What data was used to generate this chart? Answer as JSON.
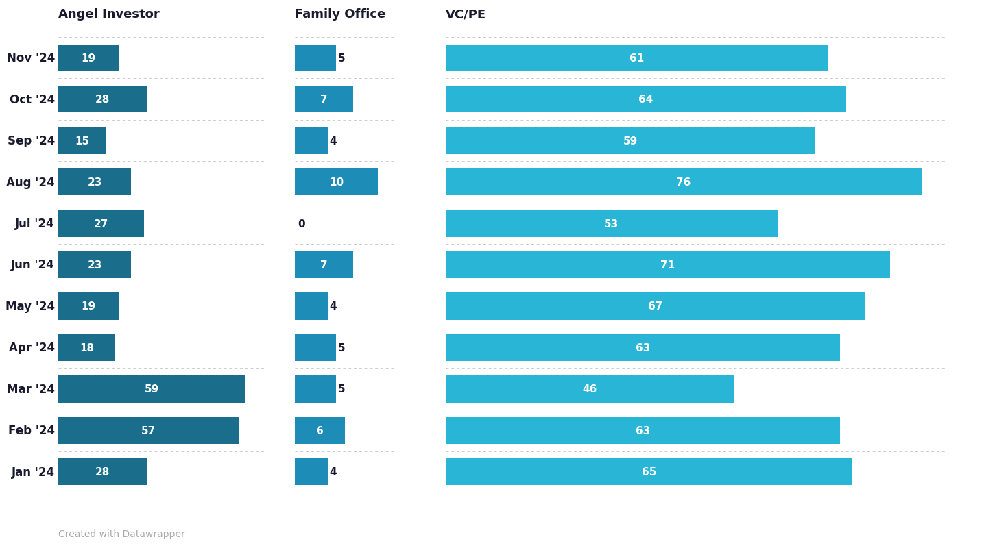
{
  "months": [
    "Nov '24",
    "Oct '24",
    "Sep '24",
    "Aug '24",
    "Jul '24",
    "Jun '24",
    "May '24",
    "Apr '24",
    "Mar '24",
    "Feb '24",
    "Jan '24"
  ],
  "angel": [
    19,
    28,
    15,
    23,
    27,
    23,
    19,
    18,
    59,
    57,
    28
  ],
  "family": [
    5,
    7,
    4,
    10,
    0,
    7,
    4,
    5,
    5,
    6,
    4
  ],
  "vcpe": [
    61,
    64,
    59,
    76,
    53,
    71,
    67,
    63,
    46,
    63,
    65
  ],
  "angel_color": "#1a6e8c",
  "family_color": "#1d8db8",
  "vcpe_color": "#29b5d5",
  "col_headers": [
    "Angel Investor",
    "Family Office",
    "VC/PE"
  ],
  "footer": "Created with Datawrapper",
  "background": "#ffffff",
  "text_color_dark": "#1a1a2e",
  "text_color_light": "#ffffff",
  "text_color_gray": "#aaaaaa",
  "angel_xlim": 65,
  "family_xlim": 12,
  "vcpe_xlim": 80,
  "angel_inside_threshold": 3,
  "family_inside_threshold": 6,
  "vcpe_inside_threshold": 3
}
